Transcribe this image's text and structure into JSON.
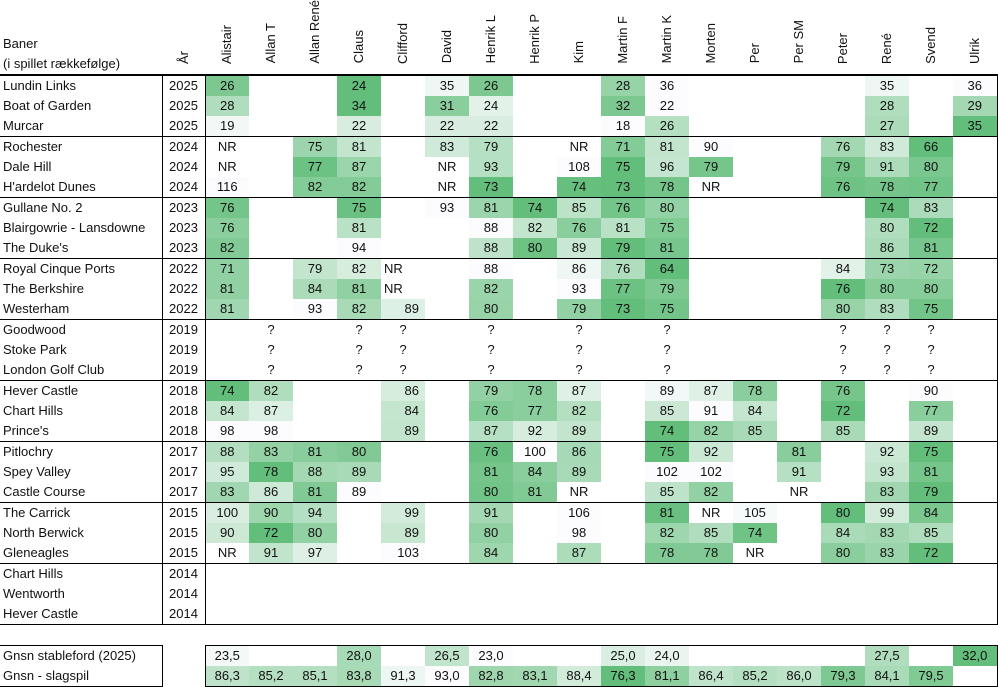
{
  "header": {
    "course_title": "Baner",
    "course_subtitle": "(i spillet rækkefølge)",
    "year": "År"
  },
  "players": [
    "Alistair",
    "Allan T",
    "Allan René",
    "Claus",
    "Clifford",
    "David",
    "Henrik L",
    "Henrik P",
    "Kim",
    "Martin F",
    "Martin K",
    "Morten",
    "Per",
    "Per SM",
    "Peter",
    "René",
    "Svend",
    "Ulrik"
  ],
  "colors": {
    "scale_low": "#FCFCFF",
    "scale_high": "#63BE7B",
    "border": "#000000"
  },
  "groups": [
    {
      "rows": [
        {
          "course": "Lundin Links",
          "year": "2025",
          "scale": "low",
          "scores": [
            "26",
            "",
            "",
            "24",
            "",
            "35",
            "26",
            "",
            "",
            "28",
            "36",
            "",
            "",
            "",
            "",
            "35",
            "",
            "36"
          ]
        },
        {
          "course": "Boat of Garden",
          "year": "2025",
          "scale": "high",
          "scores": [
            "28",
            "",
            "",
            "34",
            "",
            "31",
            "24",
            "",
            "",
            "32",
            "22",
            "",
            "",
            "",
            "",
            "28",
            "",
            "29"
          ]
        },
        {
          "course": "Murcar",
          "year": "2025",
          "scale": "high",
          "scores": [
            "19",
            "",
            "",
            "22",
            "",
            "22",
            "22",
            "",
            "",
            "18",
            "26",
            "",
            "",
            "",
            "",
            "27",
            "",
            "35"
          ]
        }
      ]
    },
    {
      "rows": [
        {
          "course": "Rochester",
          "year": "2024",
          "scale": "low",
          "scores": [
            "NR",
            "",
            "75",
            "81",
            "",
            "83",
            "79",
            "",
            "NR",
            "71",
            "81",
            "90",
            "",
            "",
            "76",
            "83",
            "66",
            ""
          ]
        },
        {
          "course": "Dale Hill",
          "year": "2024",
          "scale": "low",
          "scores": [
            "NR",
            "",
            "77",
            "87",
            "",
            "NR",
            "93",
            "",
            "108",
            "75",
            "96",
            "79",
            "",
            "",
            "79",
            "91",
            "80",
            ""
          ]
        },
        {
          "course": "H'ardelot Dunes",
          "year": "2024",
          "scale": "low",
          "scores": [
            "116",
            "",
            "82",
            "82",
            "",
            "NR",
            "73",
            "",
            "74",
            "73",
            "78",
            "NR",
            "",
            "",
            "76",
            "78",
            "77",
            ""
          ]
        }
      ]
    },
    {
      "rows": [
        {
          "course": "Gullane No. 2",
          "year": "2023",
          "scale": "low",
          "scores": [
            "76",
            "",
            "",
            "75",
            "",
            "93",
            "81",
            "74",
            "85",
            "76",
            "80",
            "",
            "",
            "",
            "",
            "74",
            "83",
            ""
          ]
        },
        {
          "course": "Blairgowrie - Lansdowne",
          "year": "2023",
          "scale": "low",
          "scores": [
            "76",
            "",
            "",
            "81",
            "",
            "",
            "88",
            "82",
            "76",
            "81",
            "75",
            "",
            "",
            "",
            "",
            "80",
            "72",
            ""
          ]
        },
        {
          "course": "The Duke's",
          "year": "2023",
          "scale": "low",
          "scores": [
            "82",
            "",
            "",
            "94",
            "",
            "",
            "88",
            "80",
            "89",
            "79",
            "81",
            "",
            "",
            "",
            "",
            "86",
            "81",
            ""
          ]
        }
      ]
    },
    {
      "rows": [
        {
          "course": "Royal Cinque Ports",
          "year": "2022",
          "scale": "low",
          "scores": [
            "71",
            "",
            "79",
            "82",
            "NR",
            "",
            "88",
            "",
            "86",
            "76",
            "64",
            "",
            "",
            "",
            "84",
            "73",
            "72",
            ""
          ]
        },
        {
          "course": "The Berkshire",
          "year": "2022",
          "scale": "low",
          "scores": [
            "81",
            "",
            "84",
            "81",
            "NR",
            "",
            "82",
            "",
            "93",
            "77",
            "79",
            "",
            "",
            "",
            "76",
            "80",
            "80",
            ""
          ]
        },
        {
          "course": "Westerham",
          "year": "2022",
          "scale": "low",
          "scores": [
            "81",
            "",
            "93",
            "82",
            "89",
            "",
            "80",
            "",
            "79",
            "73",
            "75",
            "",
            "",
            "",
            "80",
            "83",
            "75",
            ""
          ]
        }
      ]
    },
    {
      "rows": [
        {
          "course": "Goodwood",
          "year": "2019",
          "scale": "low",
          "scores": [
            "",
            "?",
            "",
            "?",
            "?",
            "",
            "?",
            "",
            "?",
            "",
            "?",
            "",
            "",
            "",
            "?",
            "?",
            "?",
            ""
          ]
        },
        {
          "course": "Stoke Park",
          "year": "2019",
          "scale": "low",
          "scores": [
            "",
            "?",
            "",
            "?",
            "?",
            "",
            "?",
            "",
            "?",
            "",
            "?",
            "",
            "",
            "",
            "?",
            "?",
            "?",
            ""
          ]
        },
        {
          "course": "London Golf Club",
          "year": "2019",
          "scale": "low",
          "scores": [
            "",
            "?",
            "",
            "?",
            "?",
            "",
            "?",
            "",
            "?",
            "",
            "?",
            "",
            "",
            "",
            "?",
            "?",
            "?",
            ""
          ]
        }
      ]
    },
    {
      "rows": [
        {
          "course": "Hever Castle",
          "year": "2018",
          "scale": "low",
          "scores": [
            "74",
            "82",
            "",
            "",
            "86",
            "",
            "79",
            "78",
            "87",
            "",
            "89",
            "87",
            "78",
            "",
            "76",
            "",
            "90",
            ""
          ]
        },
        {
          "course": "Chart Hills",
          "year": "2018",
          "scale": "low",
          "scores": [
            "84",
            "87",
            "",
            "",
            "84",
            "",
            "76",
            "77",
            "82",
            "",
            "85",
            "91",
            "84",
            "",
            "72",
            "",
            "77",
            ""
          ]
        },
        {
          "course": "Prince's",
          "year": "2018",
          "scale": "low",
          "scores": [
            "98",
            "98",
            "",
            "",
            "89",
            "",
            "87",
            "92",
            "89",
            "",
            "74",
            "82",
            "85",
            "",
            "85",
            "",
            "89",
            ""
          ]
        }
      ]
    },
    {
      "rows": [
        {
          "course": "Pitlochry",
          "year": "2017",
          "scale": "low",
          "scores": [
            "88",
            "83",
            "81",
            "80",
            "",
            "",
            "76",
            "100",
            "86",
            "",
            "75",
            "92",
            "",
            "81",
            "",
            "92",
            "75",
            ""
          ]
        },
        {
          "course": "Spey Valley",
          "year": "2017",
          "scale": "low",
          "scores": [
            "95",
            "78",
            "88",
            "89",
            "",
            "",
            "81",
            "84",
            "89",
            "",
            "102",
            "102",
            "",
            "91",
            "",
            "93",
            "81",
            ""
          ]
        },
        {
          "course": "Castle Course",
          "year": "2017",
          "scale": "low",
          "scores": [
            "83",
            "86",
            "81",
            "89",
            "",
            "",
            "80",
            "81",
            "NR",
            "",
            "85",
            "82",
            "",
            "NR",
            "",
            "83",
            "79",
            ""
          ]
        }
      ]
    },
    {
      "rows": [
        {
          "course": "The Carrick",
          "year": "2015",
          "scale": "low",
          "scores": [
            "100",
            "90",
            "94",
            "",
            "99",
            "",
            "91",
            "",
            "106",
            "",
            "81",
            "NR",
            "105",
            "",
            "80",
            "99",
            "84",
            ""
          ]
        },
        {
          "course": "North Berwick",
          "year": "2015",
          "scale": "low",
          "scores": [
            "90",
            "72",
            "80",
            "",
            "89",
            "",
            "80",
            "",
            "98",
            "",
            "82",
            "85",
            "74",
            "",
            "84",
            "83",
            "85",
            ""
          ]
        },
        {
          "course": "Gleneagles",
          "year": "2015",
          "scale": "low",
          "scores": [
            "NR",
            "91",
            "97",
            "",
            "103",
            "",
            "84",
            "",
            "87",
            "",
            "78",
            "78",
            "NR",
            "",
            "80",
            "83",
            "72",
            ""
          ]
        }
      ]
    },
    {
      "rows": [
        {
          "course": "Chart Hills",
          "year": "2014",
          "scale": "low",
          "scores": [
            "",
            "",
            "",
            "",
            "",
            "",
            "",
            "",
            "",
            "",
            "",
            "",
            "",
            "",
            "",
            "",
            "",
            ""
          ]
        },
        {
          "course": "Wentworth",
          "year": "2014",
          "scale": "low",
          "scores": [
            "",
            "",
            "",
            "",
            "",
            "",
            "",
            "",
            "",
            "",
            "",
            "",
            "",
            "",
            "",
            "",
            "",
            ""
          ]
        },
        {
          "course": "Hever Castle",
          "year": "2014",
          "scale": "low",
          "scores": [
            "",
            "",
            "",
            "",
            "",
            "",
            "",
            "",
            "",
            "",
            "",
            "",
            "",
            "",
            "",
            "",
            "",
            ""
          ]
        }
      ]
    }
  ],
  "summary": [
    {
      "label": "Gnsn stableford (2025)",
      "scale": "high",
      "values": [
        "23,5",
        "",
        "",
        "28,0",
        "",
        "26,5",
        "23,0",
        "",
        "",
        "25,0",
        "24,0",
        "",
        "",
        "",
        "",
        "27,5",
        "",
        "32,0"
      ]
    },
    {
      "label": "Gnsn - slagspil",
      "scale": "low",
      "values": [
        "86,3",
        "85,2",
        "85,1",
        "83,8",
        "91,3",
        "93,0",
        "82,8",
        "83,1",
        "88,4",
        "76,3",
        "81,1",
        "86,4",
        "85,2",
        "86,0",
        "79,3",
        "84,1",
        "79,5",
        ""
      ]
    }
  ]
}
